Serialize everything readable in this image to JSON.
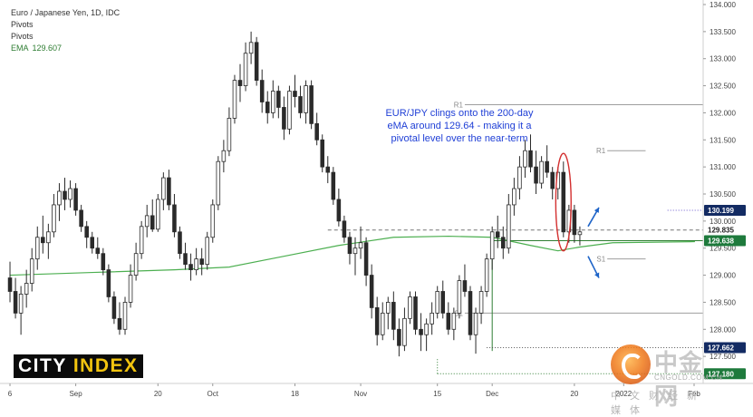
{
  "legend": {
    "symbol": "Euro / Japanese Yen, 1D, IDC",
    "pivots_1": "Pivots",
    "pivots_2": "Pivots",
    "ema_label": "EMA",
    "ema_value": "129.607"
  },
  "annotation": {
    "line1": "EUR/JPY clings onto the 200-day",
    "line2": "eMA around 129.64 - making it a",
    "line3": "pivotal level over the near-term"
  },
  "brand": {
    "word1": "CITY",
    "word2": "INDEX"
  },
  "watermark": {
    "name": "中金网",
    "site": "CNGOLD.COM.CN",
    "tagline": "中文财经新媒体"
  },
  "colors": {
    "up_candle": "#ffffff",
    "down_candle": "#2a2a2a",
    "ema": "#4caf50",
    "pivot_line": "#9e9e9e",
    "annotation_text": "#1f3fd6",
    "price_tag_navy": "#132b63",
    "price_tag_green": "#1e7a3c",
    "highlight_ellipse": "#d32f2f",
    "arrow": "#1e64c8"
  },
  "chart_data": {
    "type": "candlestick",
    "title": "Euro / Japanese Yen, 1D, IDC",
    "ylim": [
      127.0,
      134.0
    ],
    "y_ticks": [
      127.5,
      128.0,
      128.5,
      129.0,
      129.5,
      130.0,
      130.5,
      131.0,
      131.5,
      132.0,
      132.5,
      133.0,
      133.5,
      134.0
    ],
    "x_ticks": [
      "6",
      "Sep",
      "20",
      "Oct",
      "18",
      "Nov",
      "15",
      "Dec",
      "20",
      "2022",
      "Feb"
    ],
    "x_tick_index": [
      0,
      12,
      27,
      37,
      52,
      64,
      78,
      88,
      103,
      112,
      127
    ],
    "ohlc": [
      [
        128.95,
        129.25,
        128.5,
        128.7
      ],
      [
        128.7,
        128.95,
        128.2,
        128.3
      ],
      [
        128.3,
        128.8,
        127.9,
        128.65
      ],
      [
        128.65,
        129.1,
        128.4,
        128.85
      ],
      [
        128.85,
        129.5,
        128.7,
        129.3
      ],
      [
        129.3,
        129.9,
        129.1,
        129.7
      ],
      [
        129.7,
        130.1,
        129.4,
        129.6
      ],
      [
        129.6,
        129.95,
        129.3,
        129.8
      ],
      [
        129.8,
        130.5,
        129.7,
        130.3
      ],
      [
        130.3,
        130.7,
        130.0,
        130.55
      ],
      [
        130.55,
        130.8,
        130.2,
        130.4
      ],
      [
        130.4,
        130.75,
        130.25,
        130.6
      ],
      [
        130.6,
        130.7,
        130.1,
        130.2
      ],
      [
        130.2,
        130.3,
        129.8,
        129.9
      ],
      [
        129.9,
        130.0,
        129.5,
        129.7
      ],
      [
        129.7,
        129.8,
        129.4,
        129.5
      ],
      [
        129.5,
        129.7,
        129.3,
        129.4
      ],
      [
        129.4,
        129.5,
        129.0,
        129.1
      ],
      [
        129.1,
        129.2,
        128.5,
        128.6
      ],
      [
        128.6,
        128.7,
        128.1,
        128.2
      ],
      [
        128.2,
        128.5,
        127.9,
        128.0
      ],
      [
        128.0,
        128.6,
        127.9,
        128.5
      ],
      [
        128.5,
        129.2,
        128.4,
        129.0
      ],
      [
        129.0,
        129.6,
        128.9,
        129.4
      ],
      [
        129.4,
        130.0,
        129.3,
        129.9
      ],
      [
        129.9,
        130.3,
        129.7,
        130.1
      ],
      [
        130.1,
        130.4,
        129.8,
        129.85
      ],
      [
        129.85,
        130.5,
        129.8,
        130.4
      ],
      [
        130.4,
        130.9,
        130.2,
        130.8
      ],
      [
        130.8,
        130.95,
        130.2,
        130.3
      ],
      [
        130.3,
        130.5,
        129.7,
        129.8
      ],
      [
        129.8,
        129.9,
        129.3,
        129.4
      ],
      [
        129.4,
        129.6,
        129.1,
        129.2
      ],
      [
        129.2,
        129.4,
        128.9,
        129.1
      ],
      [
        129.1,
        129.5,
        129.0,
        129.3
      ],
      [
        129.3,
        129.5,
        129.0,
        129.2
      ],
      [
        129.2,
        129.8,
        129.1,
        129.7
      ],
      [
        129.7,
        130.4,
        129.6,
        130.3
      ],
      [
        130.3,
        131.2,
        130.2,
        131.1
      ],
      [
        131.1,
        131.5,
        130.9,
        131.3
      ],
      [
        131.3,
        132.1,
        131.2,
        131.9
      ],
      [
        131.9,
        132.7,
        131.8,
        132.6
      ],
      [
        132.6,
        132.9,
        132.2,
        132.5
      ],
      [
        132.5,
        133.3,
        132.4,
        133.1
      ],
      [
        133.1,
        133.5,
        132.9,
        133.3
      ],
      [
        133.3,
        133.4,
        132.5,
        132.6
      ],
      [
        132.6,
        132.8,
        132.0,
        132.2
      ],
      [
        132.2,
        132.4,
        131.8,
        132.0
      ],
      [
        132.0,
        132.6,
        131.9,
        132.4
      ],
      [
        132.4,
        132.5,
        131.9,
        132.1
      ],
      [
        132.1,
        132.3,
        131.5,
        131.7
      ],
      [
        131.7,
        132.5,
        131.6,
        132.4
      ],
      [
        132.4,
        132.7,
        132.1,
        132.3
      ],
      [
        132.3,
        132.5,
        131.9,
        132.0
      ],
      [
        132.0,
        132.6,
        131.8,
        132.5
      ],
      [
        132.5,
        132.6,
        131.7,
        131.8
      ],
      [
        131.8,
        132.0,
        131.4,
        131.5
      ],
      [
        131.5,
        131.6,
        130.9,
        131.0
      ],
      [
        131.0,
        131.2,
        130.7,
        130.9
      ],
      [
        130.9,
        131.0,
        130.3,
        130.4
      ],
      [
        130.4,
        130.6,
        129.9,
        130.0
      ],
      [
        130.0,
        130.1,
        129.6,
        129.7
      ],
      [
        129.7,
        129.8,
        129.2,
        129.4
      ],
      [
        129.4,
        129.7,
        129.0,
        129.5
      ],
      [
        129.5,
        129.9,
        129.3,
        129.6
      ],
      [
        129.6,
        129.7,
        128.8,
        129.0
      ],
      [
        129.0,
        129.2,
        128.2,
        128.4
      ],
      [
        128.4,
        128.6,
        127.7,
        127.9
      ],
      [
        127.9,
        128.5,
        127.8,
        128.3
      ],
      [
        128.3,
        128.6,
        128.0,
        128.5
      ],
      [
        128.5,
        128.7,
        127.8,
        128.0
      ],
      [
        128.0,
        128.2,
        127.5,
        127.7
      ],
      [
        127.7,
        128.4,
        127.6,
        128.2
      ],
      [
        128.2,
        128.7,
        128.1,
        128.6
      ],
      [
        128.6,
        128.7,
        127.9,
        128.0
      ],
      [
        128.0,
        128.3,
        127.6,
        127.9
      ],
      [
        127.9,
        128.2,
        127.6,
        128.1
      ],
      [
        128.1,
        128.5,
        127.9,
        128.3
      ],
      [
        128.3,
        128.8,
        128.2,
        128.7
      ],
      [
        128.7,
        128.9,
        128.2,
        128.3
      ],
      [
        128.3,
        128.5,
        127.9,
        128.0
      ],
      [
        128.0,
        128.4,
        127.8,
        128.3
      ],
      [
        128.3,
        129.0,
        128.2,
        128.9
      ],
      [
        128.9,
        129.2,
        128.6,
        128.7
      ],
      [
        128.7,
        128.8,
        127.8,
        127.9
      ],
      [
        127.9,
        128.4,
        127.55,
        128.3
      ],
      [
        128.3,
        128.8,
        128.1,
        128.7
      ],
      [
        128.7,
        129.4,
        128.6,
        129.3
      ],
      [
        129.3,
        129.9,
        129.1,
        129.8
      ],
      [
        129.8,
        130.1,
        129.5,
        129.7
      ],
      [
        129.7,
        129.9,
        129.3,
        129.5
      ],
      [
        129.5,
        130.5,
        129.4,
        130.3
      ],
      [
        130.3,
        130.8,
        130.1,
        130.6
      ],
      [
        130.6,
        131.2,
        130.4,
        131.0
      ],
      [
        131.0,
        131.5,
        130.8,
        131.3
      ],
      [
        131.3,
        131.6,
        130.9,
        131.0
      ],
      [
        131.0,
        131.3,
        130.5,
        130.7
      ],
      [
        130.7,
        131.2,
        130.6,
        131.1
      ],
      [
        131.1,
        131.4,
        130.8,
        130.9
      ],
      [
        130.9,
        131.0,
        130.4,
        130.6
      ],
      [
        130.6,
        131.0,
        130.4,
        130.9
      ],
      [
        130.9,
        131.1,
        129.7,
        129.8
      ],
      [
        129.8,
        130.3,
        129.6,
        130.2
      ],
      [
        130.2,
        130.3,
        129.6,
        129.75
      ],
      [
        129.75,
        129.9,
        129.55,
        129.8
      ]
    ],
    "ema": {
      "label": "EMA",
      "value": 129.607,
      "points": [
        [
          0,
          129.0
        ],
        [
          15,
          129.05
        ],
        [
          30,
          129.1
        ],
        [
          40,
          129.15
        ],
        [
          50,
          129.35
        ],
        [
          60,
          129.55
        ],
        [
          70,
          129.7
        ],
        [
          80,
          129.72
        ],
        [
          88,
          129.7
        ],
        [
          95,
          129.55
        ],
        [
          100,
          129.45
        ],
        [
          104,
          129.52
        ],
        [
          110,
          129.6
        ],
        [
          125,
          129.62
        ]
      ]
    },
    "pivots": [
      {
        "label": "R1",
        "value": 132.15
      },
      {
        "label": "S1",
        "value": 128.3
      },
      {
        "label": "R1",
        "value": 131.3
      },
      {
        "label": "S1",
        "value": 129.3
      }
    ],
    "reference_lines": [
      {
        "value": 129.835,
        "style": "dashed"
      },
      {
        "value": 129.638,
        "style": "solid"
      },
      {
        "value": 130.199,
        "style": "dotted"
      },
      {
        "value": 127.662,
        "style": "dotted"
      },
      {
        "value": 127.18,
        "style": "dotted"
      }
    ],
    "price_labels": [
      {
        "text": "130.199",
        "bg": "navy"
      },
      {
        "text": "129.835",
        "bg": "none"
      },
      {
        "text": "129.638",
        "bg": "green"
      },
      {
        "text": "127.662",
        "bg": "navy"
      },
      {
        "text": "127.180",
        "bg": "green"
      }
    ],
    "y_tick_labels": [
      "127.500",
      "128.000",
      "128.500",
      "129.000",
      "129.500",
      "130.000",
      "130.500",
      "131.000",
      "131.500",
      "132.000",
      "132.500",
      "133.000",
      "133.500",
      "134.000"
    ]
  }
}
